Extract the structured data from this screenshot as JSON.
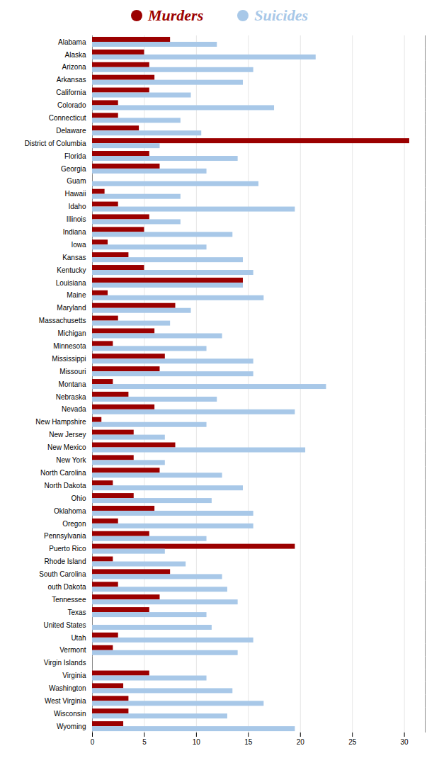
{
  "chart_data": {
    "type": "bar",
    "orientation": "horizontal",
    "categories": [
      "Alabama",
      "Alaska",
      "Arizona",
      "Arkansas",
      "California",
      "Colorado",
      "Connecticut",
      "Delaware",
      "District of Columbia",
      "Florida",
      "Georgia",
      "Guam",
      "Hawaii",
      "Idaho",
      "Illinois",
      "Indiana",
      "Iowa",
      "Kansas",
      "Kentucky",
      "Louisiana",
      "Maine",
      "Maryland",
      "Massachusetts",
      "Michigan",
      "Minnesota",
      "Mississippi",
      "Missouri",
      "Montana",
      "Nebraska",
      "Nevada",
      "New Hampshire",
      "New Jersey",
      "New Mexico",
      "New York",
      "North Carolina",
      "North Dakota",
      "Ohio",
      "Oklahoma",
      "Oregon",
      "Pennsylvania",
      "Puerto Rico",
      "Rhode Island",
      "South Carolina",
      "outh Dakota",
      "Tennessee",
      "Texas",
      "United States",
      "Utah",
      "Vermont",
      "Virgin Islands",
      "Virginia",
      "Washington",
      "West Virginia",
      "Wisconsin",
      "Wyoming"
    ],
    "series": [
      {
        "name": "Murders",
        "color": "#9B0000",
        "values": [
          7.5,
          5.0,
          5.5,
          6.0,
          5.5,
          2.5,
          2.5,
          4.5,
          30.5,
          5.5,
          6.5,
          0.0,
          1.2,
          2.5,
          5.5,
          5.0,
          1.5,
          3.5,
          5.0,
          14.5,
          1.5,
          8.0,
          2.5,
          6.0,
          2.0,
          7.0,
          6.5,
          2.0,
          3.5,
          6.0,
          0.9,
          4.0,
          8.0,
          4.0,
          6.5,
          2.0,
          4.0,
          6.0,
          2.5,
          5.5,
          19.5,
          2.0,
          7.5,
          2.5,
          6.5,
          5.5,
          0.0,
          2.5,
          2.0,
          0.0,
          5.5,
          3.0,
          3.5,
          3.5,
          3.0
        ]
      },
      {
        "name": "Suicides",
        "color": "#A8C8E8",
        "values": [
          12.0,
          21.5,
          15.5,
          14.5,
          9.5,
          17.5,
          8.5,
          10.5,
          6.5,
          14.0,
          11.0,
          16.0,
          8.5,
          19.5,
          8.5,
          13.5,
          11.0,
          14.5,
          15.5,
          14.5,
          16.5,
          9.5,
          7.5,
          12.5,
          11.0,
          15.5,
          15.5,
          22.5,
          12.0,
          19.5,
          11.0,
          7.0,
          20.5,
          7.0,
          12.5,
          14.5,
          11.5,
          15.5,
          15.5,
          11.0,
          7.0,
          9.0,
          12.5,
          13.0,
          14.0,
          11.0,
          11.5,
          15.5,
          14.0,
          0.0,
          11.0,
          13.5,
          16.5,
          13.0,
          19.5
        ]
      }
    ],
    "xlim": [
      0,
      32
    ],
    "xticks": [
      0,
      5,
      10,
      15,
      20,
      25,
      30
    ],
    "grid": true,
    "legend": "top"
  }
}
